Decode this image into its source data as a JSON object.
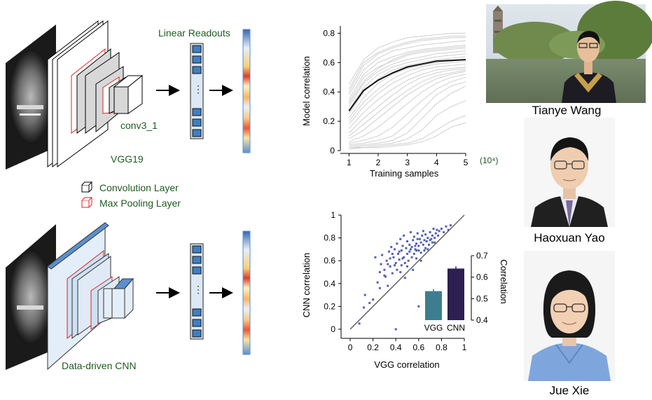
{
  "diagram": {
    "readout_title": "Linear Readouts",
    "layer_name": "conv3_1",
    "top_net": "VGG19",
    "bottom_net": "Data-driven CNN",
    "legend_conv": "Convolution Layer",
    "legend_pool": "Max Pooling Layer",
    "dots": "⋮"
  },
  "people": [
    {
      "name": "Tianye Wang"
    },
    {
      "name": "Haoxuan Yao"
    },
    {
      "name": "Jue Xie"
    }
  ],
  "colors": {
    "label_green": "#1f5b1f",
    "readout_blue": "#3f7fc4",
    "pool_red": "#e02020",
    "vgg_bar": "#3c7e8e",
    "cnn_bar": "#2d1f52",
    "scatter_point": "#5560b5",
    "mean_line": "#111111",
    "light_line": "#cfcfcf"
  },
  "chart_data": [
    {
      "type": "line",
      "ylabel": "Model correlation",
      "xlabel": "Training samples",
      "x_unit": "(10⁴)",
      "xlim": [
        0.8,
        5
      ],
      "ylim": [
        0,
        0.85
      ],
      "xticks": [
        "1",
        "2",
        "3",
        "4",
        "5"
      ],
      "yticks": [
        "0",
        "0.2",
        "0.4",
        "0.6",
        "0.8"
      ],
      "x": [
        1,
        1.5,
        2,
        2.5,
        3,
        3.5,
        4,
        4.5,
        5
      ],
      "mean": [
        0.27,
        0.41,
        0.48,
        0.53,
        0.57,
        0.59,
        0.61,
        0.615,
        0.62
      ],
      "individual": [
        [
          0.42,
          0.6,
          0.67,
          0.71,
          0.74,
          0.76,
          0.77,
          0.78,
          0.78
        ],
        [
          0.38,
          0.55,
          0.63,
          0.68,
          0.7,
          0.72,
          0.73,
          0.74,
          0.75
        ],
        [
          0.35,
          0.52,
          0.6,
          0.64,
          0.67,
          0.69,
          0.7,
          0.71,
          0.72
        ],
        [
          0.33,
          0.5,
          0.57,
          0.61,
          0.65,
          0.67,
          0.68,
          0.69,
          0.7
        ],
        [
          0.3,
          0.46,
          0.54,
          0.59,
          0.62,
          0.64,
          0.66,
          0.67,
          0.68
        ],
        [
          0.28,
          0.43,
          0.52,
          0.57,
          0.6,
          0.62,
          0.64,
          0.65,
          0.66
        ],
        [
          0.25,
          0.4,
          0.49,
          0.55,
          0.58,
          0.6,
          0.62,
          0.63,
          0.64
        ],
        [
          0.22,
          0.36,
          0.46,
          0.52,
          0.56,
          0.58,
          0.6,
          0.61,
          0.62
        ],
        [
          0.2,
          0.33,
          0.42,
          0.49,
          0.54,
          0.57,
          0.59,
          0.6,
          0.61
        ],
        [
          0.18,
          0.3,
          0.39,
          0.46,
          0.51,
          0.55,
          0.57,
          0.58,
          0.59
        ],
        [
          0.15,
          0.26,
          0.35,
          0.42,
          0.48,
          0.52,
          0.55,
          0.56,
          0.57
        ],
        [
          0.12,
          0.22,
          0.3,
          0.38,
          0.45,
          0.5,
          0.53,
          0.55,
          0.56
        ],
        [
          0.1,
          0.18,
          0.26,
          0.34,
          0.41,
          0.47,
          0.51,
          0.53,
          0.55
        ],
        [
          0.08,
          0.14,
          0.22,
          0.3,
          0.38,
          0.44,
          0.49,
          0.52,
          0.54
        ],
        [
          0.06,
          0.1,
          0.16,
          0.24,
          0.32,
          0.4,
          0.46,
          0.5,
          0.52
        ],
        [
          0.05,
          0.07,
          0.1,
          0.16,
          0.25,
          0.34,
          0.42,
          0.47,
          0.5
        ],
        [
          0.04,
          0.05,
          0.07,
          0.1,
          0.18,
          0.28,
          0.38,
          0.44,
          0.47
        ],
        [
          0.03,
          0.04,
          0.05,
          0.07,
          0.12,
          0.22,
          0.32,
          0.39,
          0.44
        ],
        [
          0.02,
          0.03,
          0.04,
          0.05,
          0.08,
          0.14,
          0.24,
          0.3,
          0.34
        ],
        [
          0.02,
          0.02,
          0.03,
          0.04,
          0.05,
          0.08,
          0.14,
          0.2,
          0.24
        ],
        [
          0.01,
          0.02,
          0.02,
          0.03,
          0.04,
          0.06,
          0.1,
          0.16,
          0.19
        ],
        [
          0.45,
          0.62,
          0.7,
          0.74,
          0.77,
          0.78,
          0.79,
          0.8,
          0.8
        ],
        [
          0.4,
          0.58,
          0.66,
          0.7,
          0.73,
          0.75,
          0.76,
          0.77,
          0.77
        ],
        [
          0.32,
          0.47,
          0.56,
          0.62,
          0.66,
          0.68,
          0.69,
          0.7,
          0.71
        ]
      ]
    },
    {
      "type": "scatter",
      "xlabel": "VGG correlation",
      "ylabel": "CNN correlation",
      "xlim": [
        -0.08,
        1
      ],
      "ylim": [
        -0.08,
        1
      ],
      "xticks": [
        "0",
        "0.2",
        "0.4",
        "0.6",
        "0.8",
        "1"
      ],
      "yticks": [
        "0",
        "0.2",
        "0.4",
        "0.6",
        "0.8",
        "1"
      ],
      "diagonal": true,
      "points": [
        [
          0.08,
          0.05
        ],
        [
          0.12,
          0.19
        ],
        [
          0.13,
          0.3
        ],
        [
          0.17,
          0.23
        ],
        [
          0.2,
          0.26
        ],
        [
          0.22,
          0.63
        ],
        [
          0.24,
          0.41
        ],
        [
          0.26,
          0.36
        ],
        [
          0.27,
          0.57
        ],
        [
          0.28,
          0.65
        ],
        [
          0.3,
          0.52
        ],
        [
          0.31,
          0.46
        ],
        [
          0.32,
          0.6
        ],
        [
          0.33,
          0.38
        ],
        [
          0.34,
          0.68
        ],
        [
          0.35,
          0.55
        ],
        [
          0.36,
          0.72
        ],
        [
          0.37,
          0.49
        ],
        [
          0.38,
          0.63
        ],
        [
          0.39,
          0.7
        ],
        [
          0.4,
          0.58
        ],
        [
          0.41,
          0.75
        ],
        [
          0.41,
          0.52
        ],
        [
          0.42,
          0.66
        ],
        [
          0.43,
          0.61
        ],
        [
          0.44,
          0.79
        ],
        [
          0.45,
          0.56
        ],
        [
          0.45,
          0.69
        ],
        [
          0.46,
          0.73
        ],
        [
          0.47,
          0.63
        ],
        [
          0.47,
          0.82
        ],
        [
          0.48,
          0.58
        ],
        [
          0.49,
          0.71
        ],
        [
          0.5,
          0.66
        ],
        [
          0.5,
          0.77
        ],
        [
          0.51,
          0.6
        ],
        [
          0.52,
          0.74
        ],
        [
          0.52,
          0.68
        ],
        [
          0.53,
          0.85
        ],
        [
          0.54,
          0.63
        ],
        [
          0.54,
          0.72
        ],
        [
          0.55,
          0.78
        ],
        [
          0.56,
          0.66
        ],
        [
          0.56,
          0.81
        ],
        [
          0.57,
          0.7
        ],
        [
          0.58,
          0.75
        ],
        [
          0.58,
          0.62
        ],
        [
          0.59,
          0.84
        ],
        [
          0.6,
          0.73
        ],
        [
          0.6,
          0.69
        ],
        [
          0.61,
          0.79
        ],
        [
          0.62,
          0.76
        ],
        [
          0.62,
          0.67
        ],
        [
          0.63,
          0.82
        ],
        [
          0.64,
          0.74
        ],
        [
          0.64,
          0.86
        ],
        [
          0.65,
          0.78
        ],
        [
          0.66,
          0.71
        ],
        [
          0.66,
          0.83
        ],
        [
          0.67,
          0.77
        ],
        [
          0.68,
          0.8
        ],
        [
          0.69,
          0.74
        ],
        [
          0.7,
          0.85
        ],
        [
          0.71,
          0.79
        ],
        [
          0.72,
          0.82
        ],
        [
          0.73,
          0.88
        ],
        [
          0.74,
          0.8
        ],
        [
          0.75,
          0.84
        ],
        [
          0.76,
          0.87
        ],
        [
          0.77,
          0.82
        ],
        [
          0.78,
          0.86
        ],
        [
          0.8,
          0.88
        ],
        [
          0.82,
          0.85
        ],
        [
          0.84,
          0.9
        ],
        [
          0.86,
          0.87
        ],
        [
          0.88,
          0.91
        ],
        [
          0.4,
          0.0
        ],
        [
          0.6,
          0.2
        ],
        [
          0.48,
          0.45
        ],
        [
          0.55,
          0.52
        ],
        [
          0.3,
          0.47
        ],
        [
          0.35,
          0.62
        ],
        [
          0.44,
          0.5
        ],
        [
          0.5,
          0.55
        ],
        [
          0.58,
          0.69
        ],
        [
          0.62,
          0.6
        ],
        [
          0.68,
          0.7
        ],
        [
          0.72,
          0.76
        ],
        [
          0.46,
          0.62
        ],
        [
          0.53,
          0.7
        ],
        [
          0.39,
          0.56
        ],
        [
          0.43,
          0.68
        ],
        [
          0.57,
          0.73
        ],
        [
          0.65,
          0.69
        ],
        [
          0.7,
          0.78
        ],
        [
          0.74,
          0.76
        ],
        [
          0.26,
          0.5
        ],
        [
          0.33,
          0.57
        ],
        [
          0.37,
          0.66
        ],
        [
          0.59,
          0.79
        ]
      ]
    },
    {
      "type": "bar",
      "categories": [
        "VGG",
        "CNN"
      ],
      "values": [
        0.535,
        0.64
      ],
      "errors": [
        0.01,
        0.01
      ],
      "ylabel": "Correlation",
      "ylim": [
        0.4,
        0.7
      ],
      "yticks": [
        "0.4",
        "0.5",
        "0.6",
        "0.7"
      ]
    }
  ]
}
